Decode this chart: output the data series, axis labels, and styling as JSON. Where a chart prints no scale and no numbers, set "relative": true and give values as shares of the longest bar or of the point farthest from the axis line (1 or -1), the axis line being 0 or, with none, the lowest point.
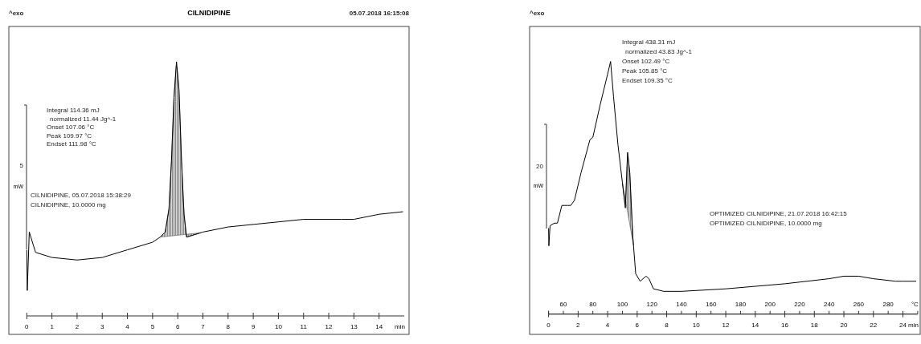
{
  "chart_data": [
    {
      "type": "line",
      "relative": true,
      "title": "CILNIDIPINE",
      "xlabel": "min",
      "ylabel": "mW",
      "xlim": [
        0,
        15
      ],
      "xticks": [
        0,
        1,
        2,
        3,
        4,
        5,
        6,
        7,
        8,
        9,
        10,
        11,
        12,
        13,
        14
      ],
      "legend": false,
      "marker": "none",
      "line_style": "solid",
      "x": [
        0,
        0.02,
        0.1,
        0.35,
        1,
        2,
        3,
        4,
        5,
        5.3,
        5.5,
        5.65,
        5.75,
        5.85,
        5.95,
        6.05,
        6.15,
        6.25,
        6.35,
        7,
        8,
        9,
        10,
        11,
        12,
        12.5,
        13,
        14,
        14.95
      ],
      "series": [
        {
          "color": "#000000",
          "values": [
            0.26,
            0.1,
            0.33,
            0.25,
            0.23,
            0.22,
            0.23,
            0.26,
            0.29,
            0.31,
            0.33,
            0.42,
            0.61,
            0.86,
            1,
            0.89,
            0.61,
            0.4,
            0.31,
            0.33,
            0.35,
            0.36,
            0.37,
            0.38,
            0.38,
            0.38,
            0.38,
            0.4,
            0.41
          ]
        }
      ],
      "annotations": [
        "^exo",
        "05.07.2018 16:15:08",
        "Integral 114.36 mJ",
        "normalized 11.44 Jg^-1",
        "Onset 107.06 °C",
        "Peak 109.97 °C",
        "Endset 111.98 °C",
        "CILNIDIPINE, 05.07.2018 15:38:29",
        "CILNIDIPINE, 10.0000 mg",
        "5"
      ]
    },
    {
      "type": "line",
      "relative": true,
      "xlabel": "min",
      "x2label": "°C",
      "ylabel": "mW",
      "xlim": [
        0,
        25
      ],
      "xticks": [
        0,
        2,
        4,
        6,
        8,
        10,
        12,
        14,
        16,
        18,
        20,
        22,
        24
      ],
      "x2lim": [
        50,
        300
      ],
      "x2ticks": [
        60,
        80,
        100,
        120,
        140,
        160,
        180,
        200,
        220,
        240,
        260,
        280
      ],
      "legend": false,
      "marker": "none",
      "line_style": "solid",
      "x": [
        0,
        0.02,
        0.1,
        0.4,
        0.6,
        0.9,
        1.3,
        1.5,
        1.75,
        2.2,
        2.8,
        3,
        3.5,
        4,
        4.2,
        4.4,
        4.7,
        5,
        5.2,
        5.35,
        5.5,
        5.7,
        5.9,
        6.2,
        6.6,
        6.8,
        7.1,
        7.8,
        9,
        12,
        16,
        19,
        20,
        21,
        22,
        23.5,
        24,
        24.9
      ],
      "series": [
        {
          "color": "#000000",
          "values": [
            0.34,
            0.27,
            0.35,
            0.36,
            0.36,
            0.43,
            0.43,
            0.43,
            0.45,
            0.56,
            0.69,
            0.7,
            0.83,
            0.95,
            1,
            0.86,
            0.67,
            0.52,
            0.42,
            0.64,
            0.56,
            0.31,
            0.16,
            0.13,
            0.15,
            0.14,
            0.1,
            0.09,
            0.09,
            0.1,
            0.12,
            0.14,
            0.15,
            0.15,
            0.14,
            0.13,
            0.13,
            0.13
          ]
        }
      ],
      "annotations": [
        "^exo",
        "Integral 438.31 mJ",
        "normalized 43.83 Jg^-1",
        "Onset 102.49 °C",
        "Peak 105.85 °C",
        "Endset 109.35 °C",
        "OPTIMIZED CILNIDIPINE, 21.07.2018 16:42:15",
        "OPTIMIZED CILNIDIPINE, 10.0000 mg",
        "20"
      ]
    }
  ]
}
